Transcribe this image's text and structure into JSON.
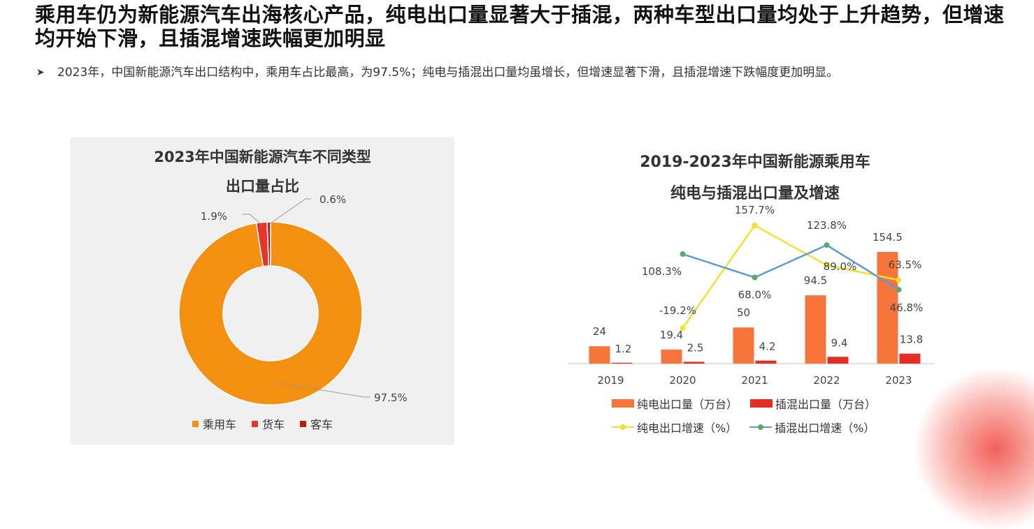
{
  "headline": "乘用车仍为新能源汽车出海核心产品，纯电出口量显著大于插混，两种车型出口量均处于上升趋势，但增速均开始下滑，且插混增速跌幅更加明显",
  "bullet": {
    "icon": "arrow-right-icon",
    "text": "2023年，中国新能源汽车出口结构中，乘用车占比最高，为97.5%；纯电与插混出口量均虽增长，但增速显著下滑，且插混增速下跌幅度更加明显。"
  },
  "colors": {
    "passenger": "#F39012",
    "truck": "#E8352C",
    "bus": "#B31D12",
    "bev_bar": "#F7743A",
    "phev_bar": "#E42E25",
    "bev_line": "#F4E02C",
    "phev_line": "#5B9BD5",
    "phev_marker": "#5BA86A"
  },
  "chart_data": [
    {
      "type": "pie",
      "title_line1": "2023年中国新能源汽车不同类型",
      "title_line2": "出口量占比",
      "labels": [
        "乘用车",
        "货车",
        "客车"
      ],
      "values": [
        97.5,
        1.9,
        0.6
      ],
      "value_labels": [
        "97.5%",
        "1.9%",
        "0.6%"
      ],
      "legend_position": "bottom"
    },
    {
      "type": "bar",
      "title_line1": "2019-2023年中国新能源乘用车",
      "title_line2": "纯电与插混出口量及增速",
      "categories": [
        "2019",
        "2020",
        "2021",
        "2022",
        "2023"
      ],
      "series": [
        {
          "name": "纯电出口量（万台）",
          "kind": "bar",
          "values": [
            24,
            19.4,
            50,
            94.5,
            154.5
          ],
          "labels": [
            "24",
            "19.4",
            "50",
            "94.5",
            "154.5"
          ]
        },
        {
          "name": "插混出口量（万台）",
          "kind": "bar",
          "values": [
            1.2,
            2.5,
            4.2,
            9.4,
            13.8
          ],
          "labels": [
            "1.2",
            "2.5",
            "4.2",
            "9.4",
            "13.8"
          ]
        },
        {
          "name": "纯电出口增速（%）",
          "kind": "line",
          "values": [
            null,
            -19.2,
            157.7,
            89.0,
            63.5
          ],
          "labels": [
            "",
            "-19.2%",
            "157.7%",
            "89.0%",
            "63.5%"
          ]
        },
        {
          "name": "插混出口增速（%）",
          "kind": "line",
          "values": [
            null,
            108.3,
            68.0,
            123.8,
            46.8
          ],
          "labels": [
            "",
            "108.3%",
            "68.0%",
            "123.8%",
            "46.8%"
          ]
        }
      ],
      "legend_position": "bottom"
    }
  ]
}
